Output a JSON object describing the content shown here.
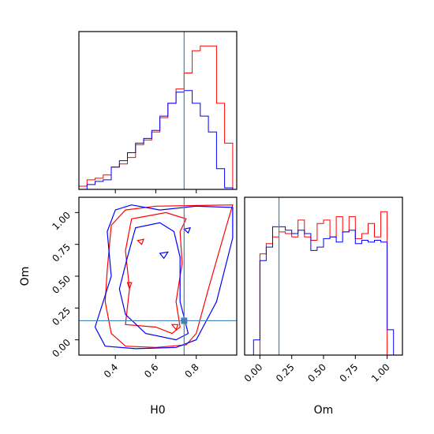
{
  "chart_data": {
    "type": "corner",
    "parameters": [
      "H0",
      "Om"
    ],
    "truth": {
      "H0": 0.74,
      "Om": 0.15
    },
    "colors": {
      "run_a": "#ff0000",
      "run_b": "#0000ff",
      "truth": "#4682b4"
    },
    "grid": false,
    "panels": {
      "H0_hist": {
        "type": "step-histogram",
        "xlim": [
          0.22,
          1.0
        ],
        "bins": [
          0.22,
          0.26,
          0.3,
          0.34,
          0.38,
          0.42,
          0.46,
          0.5,
          0.54,
          0.58,
          0.62,
          0.66,
          0.7,
          0.74,
          0.78,
          0.82,
          0.86,
          0.9,
          0.94,
          0.98,
          1.0
        ],
        "series": [
          {
            "color": "#ff0000",
            "values": [
              2,
              6,
              7,
              9,
              14,
              16,
              20,
              28,
              31,
              36,
              45,
              54,
              63,
              73,
              87,
              90,
              90,
              54,
              29,
              0
            ]
          },
          {
            "color": "#0000ff",
            "values": [
              0,
              3,
              5,
              6,
              14,
              18,
              23,
              29,
              32,
              37,
              46,
              54,
              61,
              62,
              54,
              46,
              36,
              13,
              1,
              0
            ]
          }
        ]
      },
      "Om_hist": {
        "type": "step-histogram",
        "xlim": [
          -0.12,
          1.12
        ],
        "xticks": [
          "0.00",
          "0.25",
          "0.50",
          "0.75",
          "1.00"
        ],
        "xlabel": "Om",
        "bins": [
          -0.12,
          -0.05,
          0.0,
          0.05,
          0.1,
          0.15,
          0.2,
          0.25,
          0.3,
          0.35,
          0.4,
          0.45,
          0.5,
          0.55,
          0.6,
          0.65,
          0.7,
          0.75,
          0.8,
          0.85,
          0.9,
          0.95,
          1.0,
          1.05,
          1.12
        ],
        "series": [
          {
            "color": "#ff0000",
            "values": [
              0,
              0,
              60,
              66,
              70,
              73,
              72,
              70,
              80,
              70,
              68,
              78,
              80,
              70,
              82,
              73,
              82,
              69,
              72,
              78,
              70,
              85,
              0,
              0
            ]
          },
          {
            "color": "#0000ff",
            "values": [
              0,
              9,
              56,
              64,
              76,
              76,
              74,
              72,
              74,
              72,
              62,
              64,
              69,
              70,
              67,
              73,
              74,
              66,
              68,
              67,
              68,
              67,
              15,
              0
            ]
          }
        ]
      },
      "joint": {
        "type": "contour",
        "xlim": [
          0.22,
          1.0
        ],
        "ylim": [
          -0.12,
          1.12
        ],
        "xticks": [
          "0.4",
          "0.6",
          "0.8"
        ],
        "yticks": [
          "0.00",
          "0.25",
          "0.50",
          "0.75",
          "1.00"
        ],
        "xlabel": "H0",
        "ylabel": "Om",
        "series": [
          {
            "color": "#ff0000",
            "contours": [
              [
                [
                  0.38,
                  0.05
                ],
                [
                  0.45,
                  -0.05
                ],
                [
                  0.6,
                  -0.06
                ],
                [
                  0.75,
                  -0.04
                ],
                [
                  0.8,
                  0.05
                ],
                [
                  0.86,
                  0.4
                ],
                [
                  0.95,
                  0.9
                ],
                [
                  0.98,
                  1.06
                ],
                [
                  0.6,
                  1.05
                ],
                [
                  0.45,
                  1.02
                ],
                [
                  0.38,
                  0.9
                ],
                [
                  0.36,
                  0.55
                ],
                [
                  0.35,
                  0.3
                ],
                [
                  0.38,
                  0.05
                ]
              ],
              [
                [
                  0.45,
                  0.12
                ],
                [
                  0.6,
                  0.1
                ],
                [
                  0.68,
                  0.05
                ],
                [
                  0.72,
                  0.1
                ],
                [
                  0.7,
                  0.3
                ],
                [
                  0.73,
                  0.6
                ],
                [
                  0.72,
                  0.85
                ],
                [
                  0.75,
                  0.95
                ],
                [
                  0.65,
                  1.0
                ],
                [
                  0.48,
                  0.95
                ],
                [
                  0.45,
                  0.7
                ],
                [
                  0.47,
                  0.4
                ],
                [
                  0.45,
                  0.12
                ]
              ],
              [
                [
                  0.46,
                  0.45
                ],
                [
                  0.47,
                  0.4
                ],
                [
                  0.48,
                  0.45
                ],
                [
                  0.46,
                  0.45
                ]
              ],
              [
                [
                  0.51,
                  0.78
                ],
                [
                  0.53,
                  0.75
                ],
                [
                  0.54,
                  0.79
                ],
                [
                  0.51,
                  0.78
                ]
              ],
              [
                [
                  0.68,
                  0.12
                ],
                [
                  0.7,
                  0.08
                ],
                [
                  0.71,
                  0.12
                ],
                [
                  0.68,
                  0.12
                ]
              ]
            ]
          },
          {
            "color": "#0000ff",
            "contours": [
              [
                [
                  0.3,
                  0.1
                ],
                [
                  0.35,
                  -0.05
                ],
                [
                  0.5,
                  -0.07
                ],
                [
                  0.7,
                  -0.06
                ],
                [
                  0.8,
                  0.0
                ],
                [
                  0.9,
                  0.3
                ],
                [
                  0.98,
                  0.8
                ],
                [
                  0.98,
                  1.04
                ],
                [
                  0.8,
                  1.05
                ],
                [
                  0.62,
                  1.02
                ],
                [
                  0.48,
                  1.06
                ],
                [
                  0.4,
                  1.02
                ],
                [
                  0.36,
                  0.85
                ],
                [
                  0.38,
                  0.5
                ],
                [
                  0.34,
                  0.3
                ],
                [
                  0.3,
                  0.1
                ]
              ],
              [
                [
                  0.45,
                  0.2
                ],
                [
                  0.55,
                  0.05
                ],
                [
                  0.7,
                  0.0
                ],
                [
                  0.76,
                  0.05
                ],
                [
                  0.72,
                  0.3
                ],
                [
                  0.72,
                  0.65
                ],
                [
                  0.69,
                  0.85
                ],
                [
                  0.62,
                  0.92
                ],
                [
                  0.5,
                  0.88
                ],
                [
                  0.46,
                  0.65
                ],
                [
                  0.42,
                  0.4
                ],
                [
                  0.45,
                  0.2
                ]
              ],
              [
                [
                  0.62,
                  0.68
                ],
                [
                  0.64,
                  0.64
                ],
                [
                  0.66,
                  0.69
                ],
                [
                  0.62,
                  0.68
                ]
              ],
              [
                [
                  0.74,
                  0.87
                ],
                [
                  0.76,
                  0.84
                ],
                [
                  0.77,
                  0.88
                ],
                [
                  0.74,
                  0.87
                ]
              ]
            ]
          }
        ]
      }
    }
  }
}
